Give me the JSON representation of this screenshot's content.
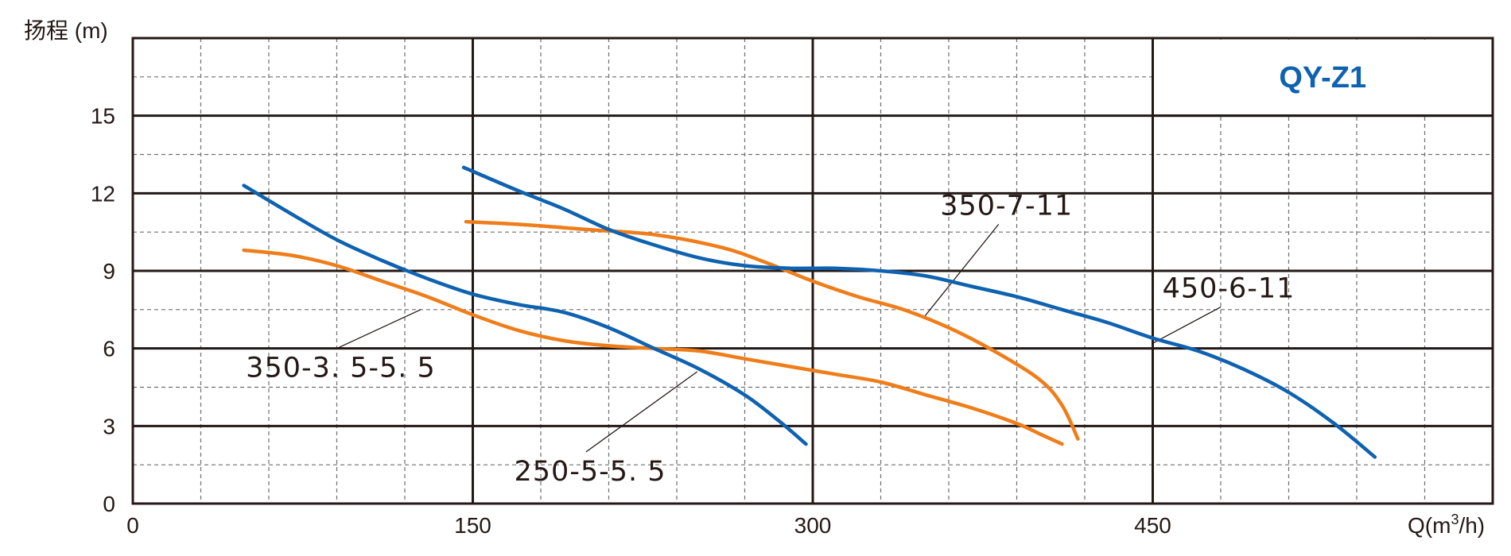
{
  "chart_data": {
    "type": "line",
    "title": "QY-Z1",
    "ylabel": "扬程 (m)",
    "xlabel": "Q(m³/h)",
    "xlim": [
      0,
      600
    ],
    "ylim": [
      0,
      18
    ],
    "x_ticks": [
      0,
      150,
      300,
      450
    ],
    "x_tick_labels": [
      "0",
      "150",
      "300",
      "450"
    ],
    "y_ticks": [
      0,
      3,
      6,
      9,
      12,
      15
    ],
    "y_tick_labels": [
      "0",
      "3",
      "6",
      "9",
      "12",
      "15"
    ],
    "grid": true,
    "series": [
      {
        "name": "350-3. 5-5. 5",
        "color": "#EF7D1A",
        "points": [
          [
            49,
            9.8
          ],
          [
            70,
            9.6
          ],
          [
            90,
            9.2
          ],
          [
            110,
            8.6
          ],
          [
            130,
            8.0
          ],
          [
            150,
            7.3
          ],
          [
            170,
            6.7
          ],
          [
            190,
            6.3
          ],
          [
            210,
            6.1
          ],
          [
            230,
            6.0
          ],
          [
            250,
            5.9
          ],
          [
            270,
            5.6
          ],
          [
            290,
            5.3
          ],
          [
            310,
            5.0
          ],
          [
            330,
            4.7
          ],
          [
            350,
            4.2
          ],
          [
            370,
            3.7
          ],
          [
            390,
            3.1
          ],
          [
            400,
            2.7
          ],
          [
            410,
            2.3
          ]
        ]
      },
      {
        "name": "250-5-5. 5",
        "color": "#0E62B0",
        "points": [
          [
            49,
            12.3
          ],
          [
            70,
            11.2
          ],
          [
            90,
            10.2
          ],
          [
            110,
            9.4
          ],
          [
            130,
            8.7
          ],
          [
            150,
            8.1
          ],
          [
            170,
            7.7
          ],
          [
            190,
            7.4
          ],
          [
            210,
            6.8
          ],
          [
            230,
            6.0
          ],
          [
            250,
            5.2
          ],
          [
            270,
            4.2
          ],
          [
            285,
            3.2
          ],
          [
            297,
            2.3
          ]
        ]
      },
      {
        "name": "350-7-11",
        "color": "#EF7D1A",
        "points": [
          [
            147,
            10.9
          ],
          [
            170,
            10.8
          ],
          [
            200,
            10.6
          ],
          [
            230,
            10.4
          ],
          [
            260,
            9.9
          ],
          [
            280,
            9.3
          ],
          [
            300,
            8.6
          ],
          [
            320,
            8.0
          ],
          [
            340,
            7.5
          ],
          [
            360,
            6.8
          ],
          [
            380,
            5.9
          ],
          [
            400,
            4.8
          ],
          [
            410,
            3.8
          ],
          [
            417,
            2.5
          ]
        ]
      },
      {
        "name": "450-6-11",
        "color": "#0E62B0",
        "points": [
          [
            146,
            13.0
          ],
          [
            170,
            12.1
          ],
          [
            190,
            11.4
          ],
          [
            210,
            10.6
          ],
          [
            230,
            10.0
          ],
          [
            250,
            9.5
          ],
          [
            270,
            9.2
          ],
          [
            290,
            9.1
          ],
          [
            310,
            9.1
          ],
          [
            330,
            9.0
          ],
          [
            350,
            8.8
          ],
          [
            370,
            8.4
          ],
          [
            390,
            8.0
          ],
          [
            410,
            7.5
          ],
          [
            430,
            7.0
          ],
          [
            450,
            6.4
          ],
          [
            470,
            5.9
          ],
          [
            490,
            5.2
          ],
          [
            510,
            4.3
          ],
          [
            530,
            3.1
          ],
          [
            548,
            1.8
          ]
        ]
      }
    ],
    "annotations": [
      {
        "text": "350-3. 5-5. 5",
        "target": [
          127,
          7.5
        ],
        "label_anchor": [
          90,
          6.0
        ]
      },
      {
        "text": "250-5-5. 5",
        "target": [
          249,
          5.1
        ],
        "label_anchor": [
          200,
          2.0
        ]
      },
      {
        "text": "350-7-11",
        "target": [
          349,
          7.2
        ],
        "label_anchor": [
          382,
          10.8
        ]
      },
      {
        "text": "450-6-11",
        "target": [
          450,
          6.2
        ],
        "label_anchor": [
          480,
          7.6
        ]
      }
    ]
  }
}
